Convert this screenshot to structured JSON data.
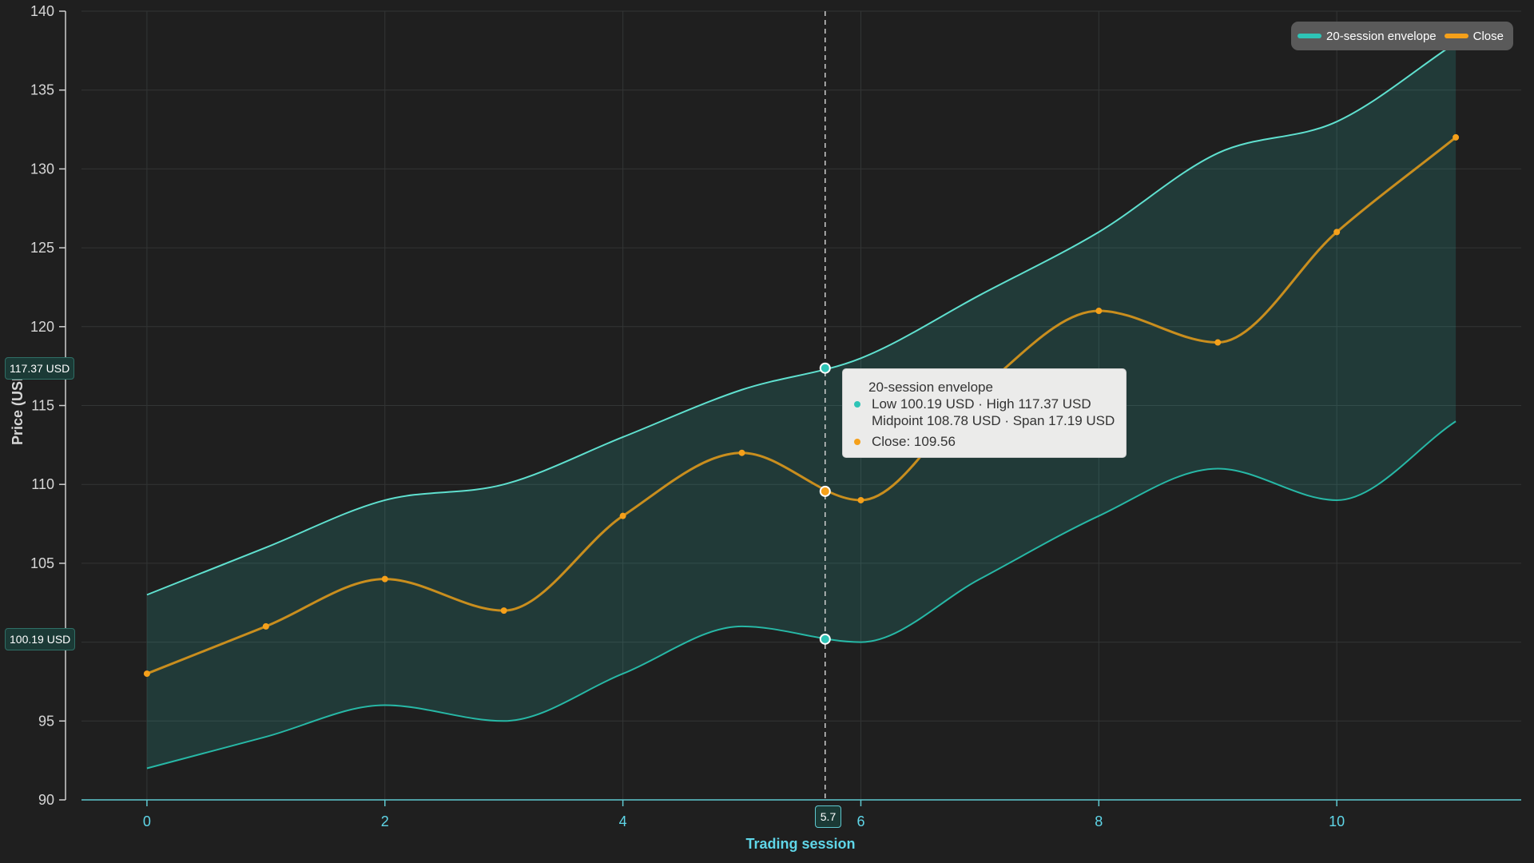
{
  "chart_data": {
    "type": "area",
    "xlabel": "Trading session",
    "ylabel": "Price (USD)",
    "xlim": [
      -0.55,
      11.55
    ],
    "ylim": [
      90,
      140
    ],
    "x_ticks": [
      0,
      2,
      4,
      6,
      8,
      10
    ],
    "y_ticks": [
      90,
      95,
      100,
      105,
      110,
      115,
      120,
      125,
      130,
      135,
      140
    ],
    "grid": true,
    "legend_position": "top-right",
    "x": [
      0,
      1,
      2,
      3,
      4,
      5,
      6,
      7,
      8,
      9,
      10,
      11
    ],
    "series": [
      {
        "name": "20-session envelope",
        "type": "range",
        "color": "#2ec4b6",
        "low": [
          92,
          94,
          96,
          95,
          98,
          101,
          100,
          104,
          108,
          111,
          109,
          114
        ],
        "high": [
          103,
          106,
          109,
          110,
          113,
          116,
          118,
          122,
          126,
          131,
          133,
          138
        ]
      },
      {
        "name": "Close",
        "type": "line",
        "color": "#f5a01a",
        "values": [
          98,
          101,
          104,
          102,
          108,
          112,
          109,
          116,
          121,
          119,
          126,
          132
        ]
      }
    ],
    "hover": {
      "x": 5.7,
      "x_label": "5.7",
      "low": 100.19,
      "high": 117.37,
      "close": 109.56,
      "low_label": "100.19 USD",
      "high_label": "117.37 USD"
    }
  },
  "legend": {
    "items": [
      {
        "label": "20-session envelope",
        "color": "#2ec4b6"
      },
      {
        "label": "Close",
        "color": "#f5a01a"
      }
    ]
  },
  "tooltip": {
    "title": "20-session envelope",
    "line1": "Low 100.19 USD · High 117.37 USD",
    "line2": "Midpoint 108.78 USD · Span 17.19 USD",
    "close": "Close: 109.56"
  }
}
